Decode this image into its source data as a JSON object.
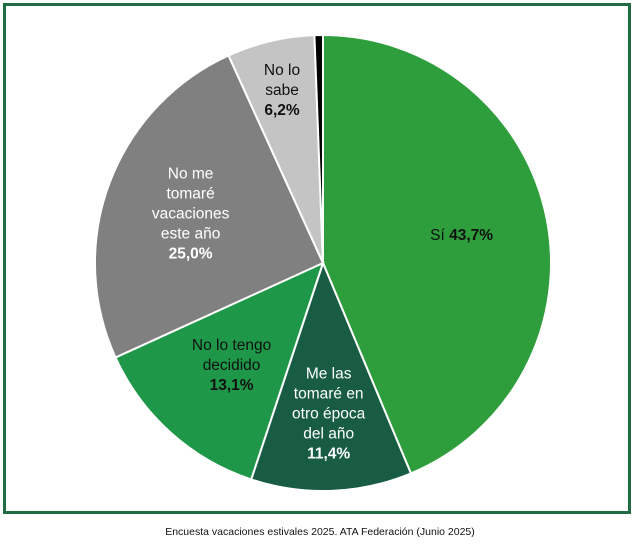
{
  "chart_data": {
    "type": "pie",
    "title": "",
    "slices": [
      {
        "label_lines": [
          "Sí"
        ],
        "value_label": "43,7%",
        "value": 43.7,
        "color": "#2e9e3c",
        "text_color": "#111111"
      },
      {
        "label_lines": [
          "Me las",
          "tomaré en",
          "otro época",
          "del año"
        ],
        "value_label": "11,4%",
        "value": 11.4,
        "color": "#175c43",
        "text_color": "#ffffff"
      },
      {
        "label_lines": [
          "No lo tengo",
          "decidido"
        ],
        "value_label": "13,1%",
        "value": 13.1,
        "color": "#1e9848",
        "text_color": "#111111"
      },
      {
        "label_lines": [
          "No me",
          "tomaré",
          "vacaciones",
          "este año"
        ],
        "value_label": "25,0%",
        "value": 25.0,
        "color": "#808080",
        "text_color": "#ffffff"
      },
      {
        "label_lines": [
          "No lo",
          "sabe"
        ],
        "value_label": "6,2%",
        "value": 6.2,
        "color": "#c4c4c4",
        "text_color": "#111111"
      },
      {
        "label_lines": [],
        "value_label": "",
        "value": 0.6,
        "color": "#000000",
        "text_color": "#111111"
      }
    ],
    "legend": "none"
  },
  "source_caption": "Encuesta vacaciones estivales 2025. ATA Federación (Junio 2025)"
}
